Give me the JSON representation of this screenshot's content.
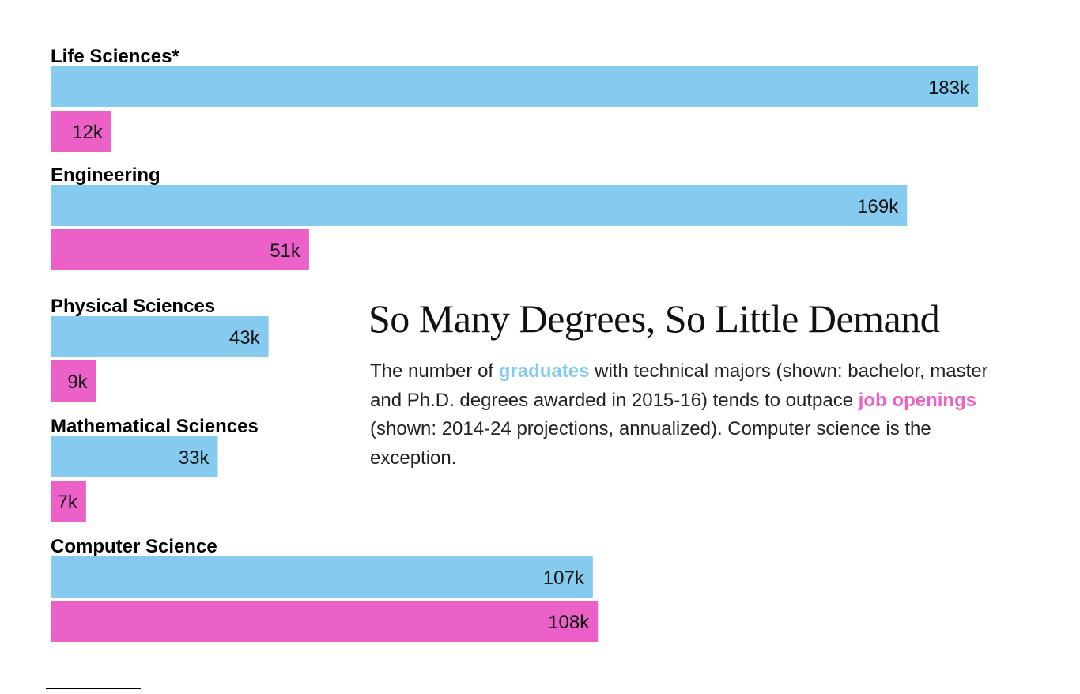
{
  "title": "So Many Degrees, So Little Demand",
  "description": {
    "part1": "The number of ",
    "graduates_word": "graduates",
    "part2": " with technical majors (shown: bachelor, master and Ph.D. degrees awarded in 2015-16) tends to outpace ",
    "jobs_word": "job openings",
    "part3": " (shown: 2014-24 projections, annualized). Computer science is the exception."
  },
  "colors": {
    "graduates": "#85cbef",
    "job_openings": "#ec61c8"
  },
  "chart_data": {
    "type": "bar",
    "orientation": "horizontal",
    "categories": [
      "Life Sciences*",
      "Engineering",
      "Physical Sciences",
      "Mathematical Sciences",
      "Computer Science"
    ],
    "series": [
      {
        "key": "graduates",
        "values": [
          183,
          169,
          43,
          33,
          107
        ],
        "labels": [
          "183k",
          "169k",
          "43k",
          "33k",
          "107k"
        ]
      },
      {
        "key": "job_openings",
        "values": [
          12,
          51,
          9,
          7,
          108
        ],
        "labels": [
          "12k",
          "51k",
          "9k",
          "7k",
          "108k"
        ]
      }
    ],
    "unit": "k",
    "xlim": [
      0,
      183
    ],
    "grid": false,
    "legend": "inline in description text"
  }
}
